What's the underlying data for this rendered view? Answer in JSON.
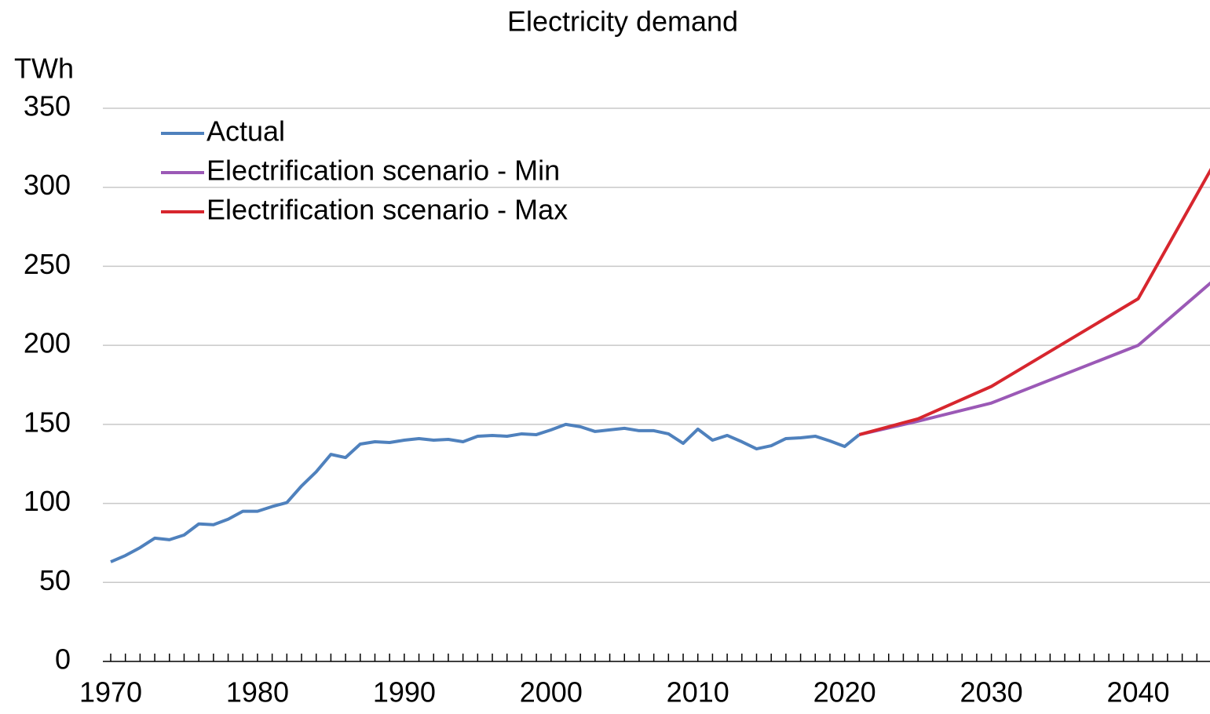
{
  "chart_data": {
    "type": "line",
    "title": "Electricity demand",
    "y_label": "TWh",
    "xlim": [
      1970,
      2045
    ],
    "xticks": [
      1970,
      1980,
      1990,
      2000,
      2010,
      2020,
      2030,
      2040
    ],
    "xminorticks": [
      1970,
      1971,
      1972,
      1973,
      1974,
      1975,
      1976,
      1977,
      1978,
      1979,
      1980,
      1981,
      1982,
      1983,
      1984,
      1985,
      1986,
      1987,
      1988,
      1989,
      1990,
      1991,
      1992,
      1993,
      1994,
      1995,
      1996,
      1997,
      1998,
      1999,
      2000,
      2001,
      2002,
      2003,
      2004,
      2005,
      2006,
      2007,
      2008,
      2009,
      2010,
      2011,
      2012,
      2013,
      2014,
      2015,
      2016,
      2017,
      2018,
      2019,
      2020,
      2021,
      2022,
      2023,
      2024,
      2025,
      2026,
      2027,
      2028,
      2029,
      2030,
      2031,
      2032,
      2033,
      2034,
      2035,
      2036,
      2037,
      2038,
      2039,
      2040,
      2041,
      2042,
      2043,
      2044,
      2045
    ],
    "ylim": [
      0,
      350
    ],
    "yticks": [
      0,
      50,
      100,
      150,
      200,
      250,
      300,
      350
    ],
    "grid": true,
    "legend": "upper left",
    "series": [
      {
        "name": "Actual",
        "color": "#4f81bd",
        "x": [
          1970,
          1971,
          1972,
          1973,
          1974,
          1975,
          1976,
          1977,
          1978,
          1979,
          1980,
          1981,
          1982,
          1983,
          1984,
          1985,
          1986,
          1987,
          1988,
          1989,
          1990,
          1991,
          1992,
          1993,
          1994,
          1995,
          1996,
          1997,
          1998,
          1999,
          2000,
          2001,
          2002,
          2003,
          2004,
          2005,
          2006,
          2007,
          2008,
          2009,
          2010,
          2011,
          2012,
          2013,
          2014,
          2015,
          2016,
          2017,
          2018,
          2019,
          2020,
          2021
        ],
        "values": [
          63,
          67,
          72,
          78,
          77,
          80,
          87,
          86.5,
          90,
          95,
          95,
          98,
          100.5,
          111,
          120,
          131,
          129,
          137.5,
          139,
          138.5,
          140,
          141,
          140,
          140.5,
          139,
          142.5,
          143,
          142.5,
          144,
          143.5,
          146.5,
          150,
          148.5,
          145.5,
          146.5,
          147.5,
          146,
          146,
          144,
          138,
          147,
          140,
          143,
          139,
          134.5,
          136.5,
          141,
          141.5,
          142.5,
          139.5,
          136,
          143.5
        ]
      },
      {
        "name": "Electrification scenario - Min",
        "color": "#9b59b6",
        "x": [
          2021,
          2025,
          2030,
          2040,
          2045
        ],
        "values": [
          143.5,
          152,
          163.5,
          200,
          240
        ]
      },
      {
        "name": "Electrification scenario - Max",
        "color": "#d7262e",
        "x": [
          2021,
          2025,
          2030,
          2040,
          2045
        ],
        "values": [
          143.5,
          153.5,
          174,
          229.5,
          312
        ]
      }
    ]
  }
}
